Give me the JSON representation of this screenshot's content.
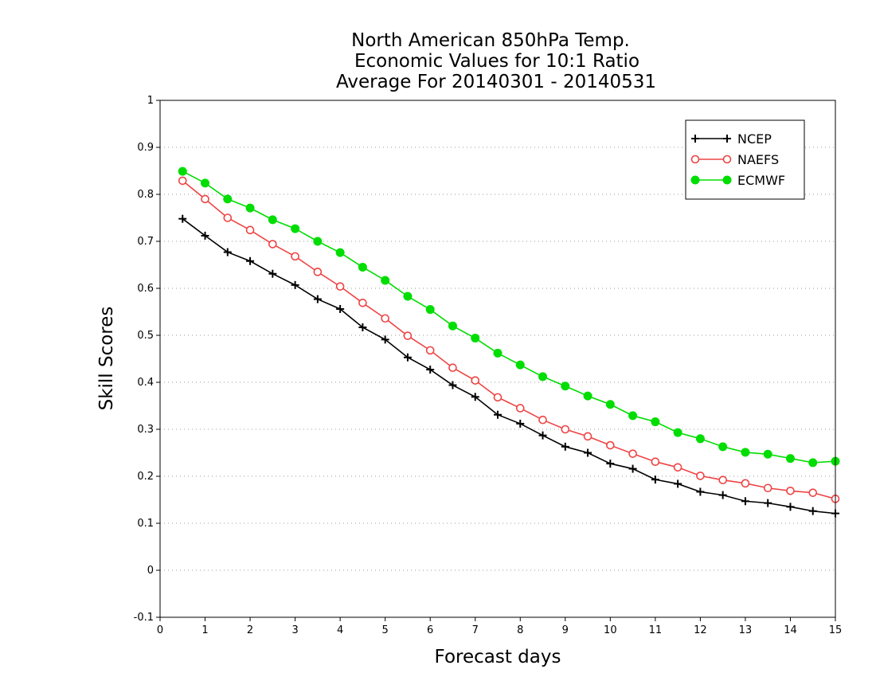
{
  "chart_data": {
    "type": "line",
    "title_lines": [
      "North American 850hPa Temp.",
      "Economic Values for 10:1 Ratio",
      "Average For 20140301 - 20140531"
    ],
    "xlabel": "Forecast days",
    "ylabel": "Skill Scores",
    "xlim": [
      0,
      15
    ],
    "ylim": [
      -0.1,
      1
    ],
    "x_ticks": [
      0,
      1,
      2,
      3,
      4,
      5,
      6,
      7,
      8,
      9,
      10,
      11,
      12,
      13,
      14,
      15
    ],
    "y_ticks": [
      -0.1,
      0,
      0.1,
      0.2,
      0.3,
      0.4,
      0.5,
      0.6,
      0.7,
      0.8,
      0.9,
      1
    ],
    "y_tick_labels": [
      "-0.1",
      "0",
      "0.1",
      "0.2",
      "0.3",
      "0.4",
      "0.5",
      "0.6",
      "0.7",
      "0.8",
      "0.9",
      "1"
    ],
    "grid": "horizontal-dotted",
    "legend_position": "top-right",
    "x": [
      0.5,
      1,
      1.5,
      2,
      2.5,
      3,
      3.5,
      4,
      4.5,
      5,
      5.5,
      6,
      6.5,
      7,
      7.5,
      8,
      8.5,
      9,
      9.5,
      10,
      10.5,
      11,
      11.5,
      12,
      12.5,
      13,
      13.5,
      14,
      14.5,
      15
    ],
    "series": [
      {
        "name": "NCEP",
        "color": "#000000",
        "marker": "plus",
        "values": [
          0.748,
          0.712,
          0.677,
          0.658,
          0.631,
          0.607,
          0.577,
          0.556,
          0.517,
          0.491,
          0.453,
          0.427,
          0.394,
          0.369,
          0.331,
          0.312,
          0.287,
          0.263,
          0.25,
          0.227,
          0.216,
          0.193,
          0.184,
          0.167,
          0.16,
          0.147,
          0.143,
          0.135,
          0.126,
          0.121
        ]
      },
      {
        "name": "NAEFS",
        "color": "#ee4444",
        "marker": "open-circle",
        "values": [
          0.829,
          0.79,
          0.75,
          0.724,
          0.694,
          0.668,
          0.635,
          0.604,
          0.569,
          0.536,
          0.499,
          0.468,
          0.431,
          0.404,
          0.368,
          0.345,
          0.32,
          0.3,
          0.285,
          0.266,
          0.248,
          0.231,
          0.219,
          0.201,
          0.192,
          0.185,
          0.175,
          0.169,
          0.165,
          0.152
        ]
      },
      {
        "name": "ECMWF",
        "color": "#00dd00",
        "marker": "filled-circle",
        "values": [
          0.849,
          0.824,
          0.79,
          0.771,
          0.746,
          0.727,
          0.7,
          0.676,
          0.645,
          0.617,
          0.583,
          0.555,
          0.52,
          0.494,
          0.462,
          0.437,
          0.412,
          0.392,
          0.371,
          0.353,
          0.329,
          0.316,
          0.293,
          0.28,
          0.263,
          0.251,
          0.247,
          0.238,
          0.229,
          0.232
        ]
      }
    ]
  }
}
